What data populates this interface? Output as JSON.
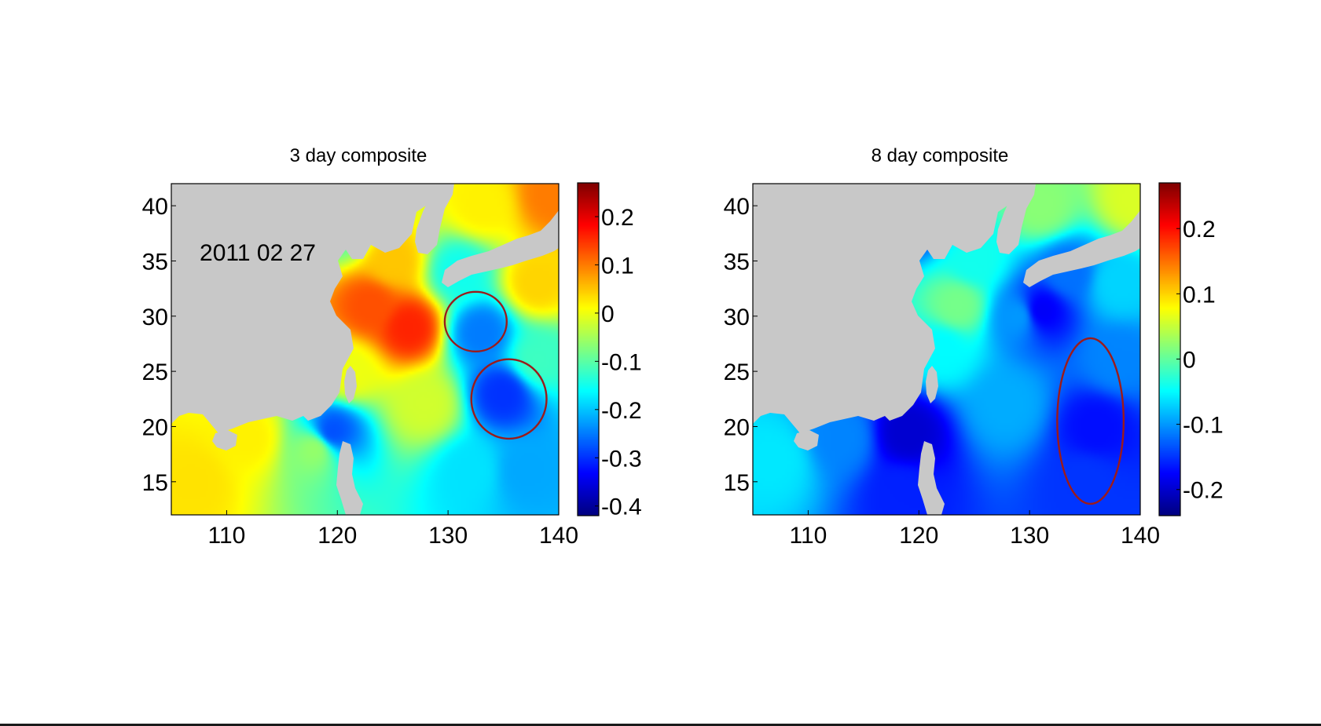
{
  "figure": {
    "background": "#ffffff",
    "land_color": "#c8c8c8",
    "colormap": "jet",
    "annotation_color": "#9b1b1b"
  },
  "chart_data": [
    {
      "type": "heatmap",
      "title": "3 day composite",
      "annotation_text": "2011 02 27",
      "x_ticks": [
        110,
        120,
        130,
        140
      ],
      "y_ticks": [
        15,
        20,
        25,
        30,
        35,
        40
      ],
      "xlim": [
        105,
        140
      ],
      "ylim": [
        12,
        42
      ],
      "colorbar": {
        "range": [
          -0.42,
          0.27
        ],
        "ticks": [
          0.2,
          0.1,
          0,
          -0.1,
          -0.2,
          -0.3,
          -0.4
        ],
        "tick_labels": [
          "0.2",
          "0.1",
          "0",
          "-0.1",
          "-0.2",
          "-0.3",
          "-0.4"
        ]
      },
      "field_anchors": [
        {
          "lon": 107,
          "lat": 15,
          "value": 0.03
        },
        {
          "lon": 112,
          "lat": 19,
          "value": 0.02
        },
        {
          "lon": 118,
          "lat": 18,
          "value": -0.06
        },
        {
          "lon": 119.5,
          "lat": 19.5,
          "value": -0.28
        },
        {
          "lon": 121,
          "lat": 25,
          "value": 0.0
        },
        {
          "lon": 123,
          "lat": 31,
          "value": 0.13
        },
        {
          "lon": 126.5,
          "lat": 29,
          "value": 0.16
        },
        {
          "lon": 125,
          "lat": 35,
          "value": 0.05
        },
        {
          "lon": 120.5,
          "lat": 38,
          "value": -0.1
        },
        {
          "lon": 128,
          "lat": 22,
          "value": -0.02
        },
        {
          "lon": 131,
          "lat": 34,
          "value": -0.15
        },
        {
          "lon": 133,
          "lat": 28.5,
          "value": -0.25
        },
        {
          "lon": 135,
          "lat": 23,
          "value": -0.3
        },
        {
          "lon": 137,
          "lat": 16,
          "value": -0.22
        },
        {
          "lon": 132,
          "lat": 16,
          "value": -0.18
        },
        {
          "lon": 138,
          "lat": 33,
          "value": 0.04
        },
        {
          "lon": 133,
          "lat": 40,
          "value": 0.02
        },
        {
          "lon": 139.5,
          "lat": 41,
          "value": 0.1
        },
        {
          "lon": 138,
          "lat": 26,
          "value": -0.12
        }
      ],
      "annotations": [
        {
          "shape": "circle",
          "lon": 132.5,
          "lat": 29.5,
          "radius_lon": 2.8,
          "radius_lat": 2.7
        },
        {
          "shape": "circle",
          "lon": 135.5,
          "lat": 22.5,
          "radius_lon": 3.4,
          "radius_lat": 3.6
        }
      ]
    },
    {
      "type": "heatmap",
      "title": "8 day composite",
      "x_ticks": [
        110,
        120,
        130,
        140
      ],
      "y_ticks": [
        15,
        20,
        25,
        30,
        35,
        40
      ],
      "xlim": [
        105,
        140
      ],
      "ylim": [
        12,
        42
      ],
      "colorbar": {
        "range": [
          -0.24,
          0.27
        ],
        "ticks": [
          0.2,
          0.1,
          0,
          -0.1,
          -0.2
        ],
        "tick_labels": [
          "0.2",
          "0.1",
          "0",
          "-0.1",
          "-0.2"
        ]
      },
      "field_anchors": [
        {
          "lon": 107,
          "lat": 17,
          "value": -0.06
        },
        {
          "lon": 113,
          "lat": 19,
          "value": -0.11
        },
        {
          "lon": 119,
          "lat": 19.5,
          "value": -0.2
        },
        {
          "lon": 118.5,
          "lat": 14,
          "value": -0.16
        },
        {
          "lon": 122,
          "lat": 27,
          "value": -0.05
        },
        {
          "lon": 123.5,
          "lat": 31,
          "value": 0.01
        },
        {
          "lon": 125,
          "lat": 35,
          "value": -0.04
        },
        {
          "lon": 120,
          "lat": 39,
          "value": -0.15
        },
        {
          "lon": 128,
          "lat": 22,
          "value": -0.09
        },
        {
          "lon": 129,
          "lat": 30,
          "value": -0.1
        },
        {
          "lon": 131,
          "lat": 30.5,
          "value": -0.18
        },
        {
          "lon": 133.5,
          "lat": 34,
          "value": -0.12
        },
        {
          "lon": 136,
          "lat": 20,
          "value": -0.17
        },
        {
          "lon": 135,
          "lat": 15,
          "value": -0.15
        },
        {
          "lon": 138,
          "lat": 26,
          "value": -0.11
        },
        {
          "lon": 131,
          "lat": 40,
          "value": 0.02
        },
        {
          "lon": 139.5,
          "lat": 40.5,
          "value": 0.06
        },
        {
          "lon": 138,
          "lat": 33,
          "value": -0.07
        }
      ],
      "annotations": [
        {
          "shape": "ellipse",
          "lon": 135.5,
          "lat": 20.5,
          "radius_lon": 3.0,
          "radius_lat": 7.5
        }
      ]
    }
  ]
}
